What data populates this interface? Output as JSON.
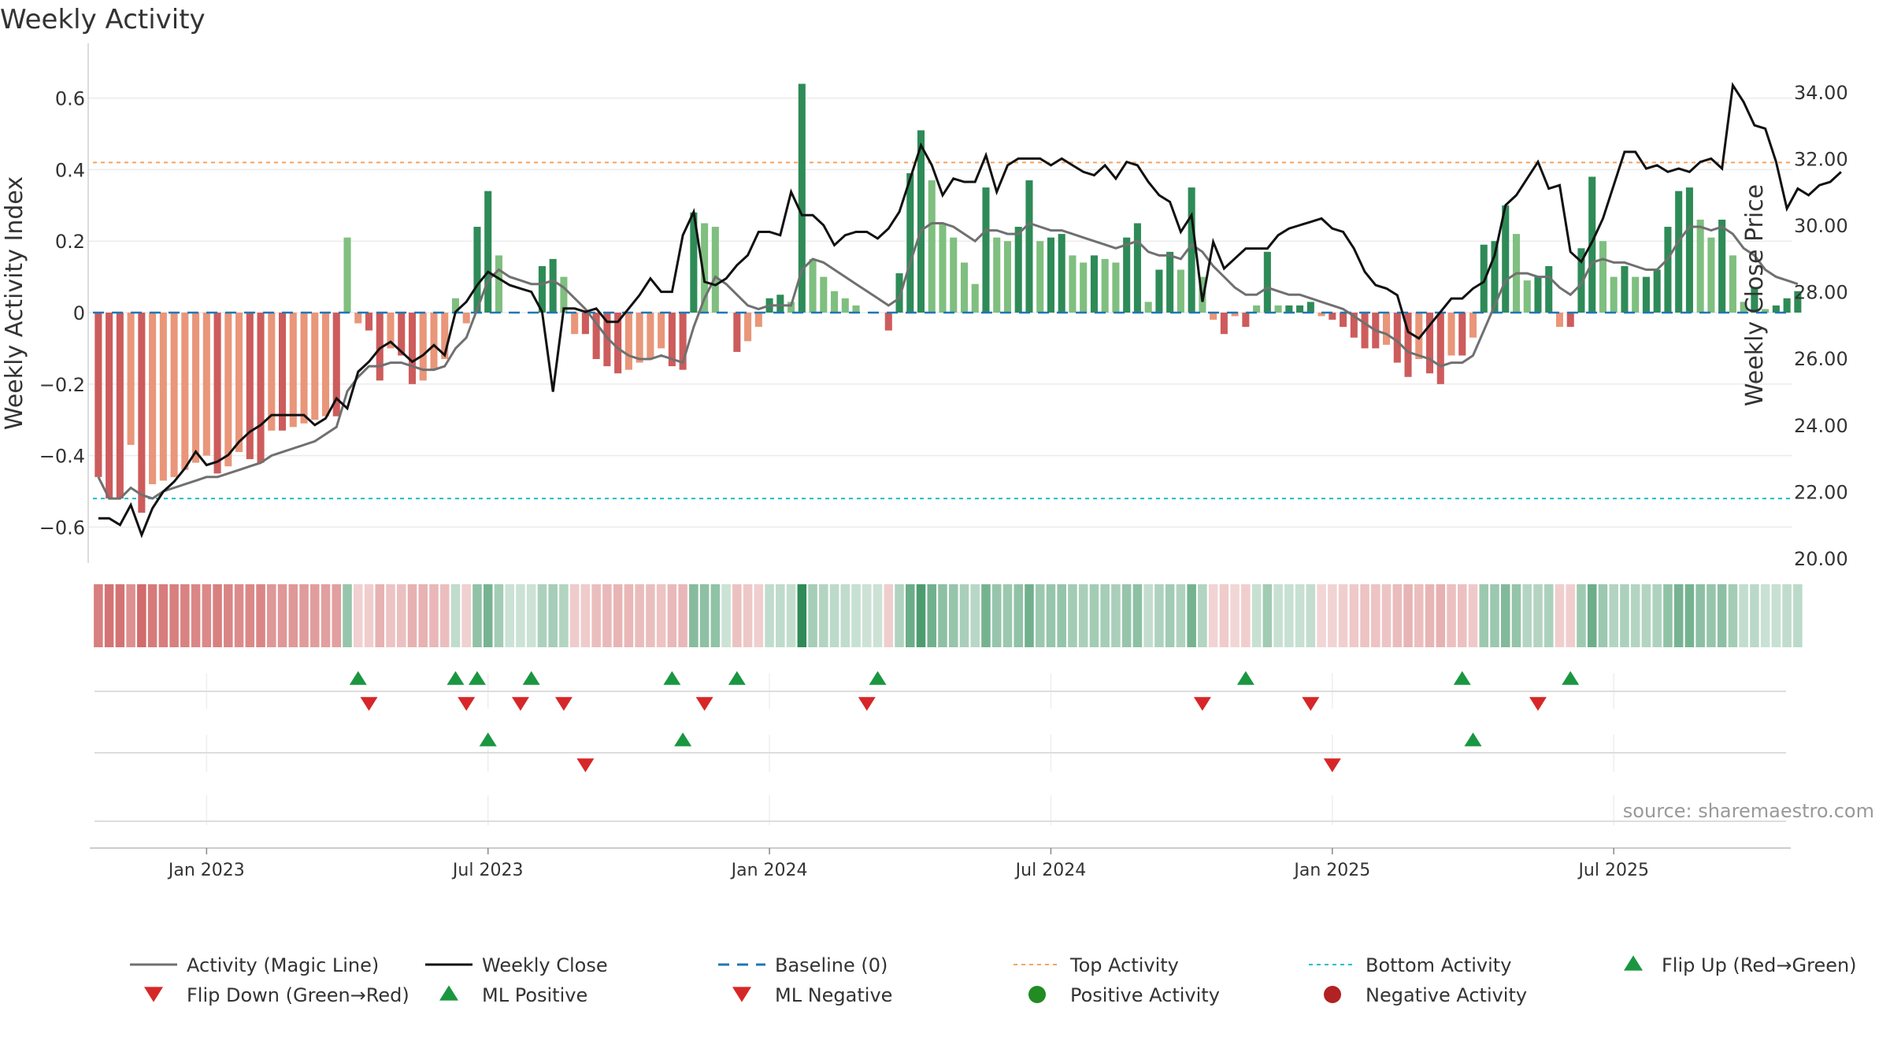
{
  "chart_data": {
    "type": "bar",
    "title": "Weekly Activity",
    "ylabel": "Weekly Activity Index",
    "y2label": "Weekly Close Price",
    "ylim": [
      -0.7,
      0.7
    ],
    "y2lim": [
      20,
      35
    ],
    "yticks": [
      "0.6",
      "0.4",
      "0.2",
      "0",
      "−0.2",
      "−0.4",
      "−0.6"
    ],
    "yticks_values": [
      0.6,
      0.4,
      0.2,
      0,
      -0.2,
      -0.4,
      -0.6
    ],
    "y2ticks": [
      "34.00",
      "32.00",
      "30.00",
      "28.00",
      "26.00",
      "24.00",
      "22.00",
      "20.00"
    ],
    "y2ticks_values": [
      34,
      32,
      30,
      28,
      26,
      24,
      22,
      20
    ],
    "xticks": [
      "Jan 2023",
      "Jul 2023",
      "Jan 2024",
      "Jul 2024",
      "Jan 2025",
      "Jul 2025"
    ],
    "xticks_week": [
      10,
      36,
      62,
      88,
      114,
      140
    ],
    "weeks_total": 157,
    "top_activity": 0.42,
    "bottom_activity": -0.52,
    "source": "source: sharemaestro.com",
    "activity": [
      -0.46,
      -0.52,
      -0.52,
      -0.37,
      -0.56,
      -0.48,
      -0.47,
      -0.46,
      -0.44,
      -0.42,
      -0.4,
      -0.45,
      -0.43,
      -0.39,
      -0.41,
      -0.42,
      -0.33,
      -0.33,
      -0.32,
      -0.31,
      -0.3,
      -0.29,
      -0.29,
      0.21,
      -0.03,
      -0.05,
      -0.19,
      -0.1,
      -0.12,
      -0.2,
      -0.19,
      -0.16,
      -0.13,
      0.04,
      -0.03,
      0.24,
      0.34,
      0.16,
      0,
      0,
      0,
      0.13,
      0.15,
      0.1,
      -0.06,
      -0.06,
      -0.13,
      -0.15,
      -0.17,
      -0.16,
      -0.14,
      -0.13,
      -0.1,
      -0.15,
      -0.16,
      0.28,
      0.25,
      0.24,
      0,
      -0.11,
      -0.08,
      -0.04,
      0.04,
      0.05,
      0.03,
      0.64,
      0.15,
      0.1,
      0.06,
      0.04,
      0.02,
      0,
      0,
      -0.05,
      0.11,
      0.39,
      0.51,
      0.37,
      0.25,
      0.21,
      0.14,
      0.08,
      0.35,
      0.21,
      0.2,
      0.24,
      0.37,
      0.2,
      0.21,
      0.22,
      0.16,
      0.14,
      0.16,
      0.15,
      0.14,
      0.21,
      0.25,
      0.03,
      0.12,
      0.17,
      0.12,
      0.35,
      0.1,
      -0.02,
      -0.06,
      -0.01,
      -0.04,
      0.02,
      0.17,
      0.02,
      0.02,
      0.02,
      0.03,
      -0.01,
      -0.02,
      -0.04,
      -0.07,
      -0.1,
      -0.1,
      -0.09,
      -0.14,
      -0.18,
      -0.13,
      -0.17,
      -0.2,
      -0.12,
      -0.12,
      -0.07,
      0.19,
      0.2,
      0.3,
      0.22,
      0.09,
      0.1,
      0.13,
      -0.04,
      -0.04,
      0.18,
      0.38,
      0.2,
      0.1,
      0.13,
      0.1,
      0.1,
      0.12,
      0.24,
      0.34,
      0.35,
      0.26,
      0.21,
      0.26,
      0.16,
      0.03,
      0.07,
      0.01,
      0.02,
      0.04,
      0.06
    ],
    "magic_line": [
      -0.46,
      -0.52,
      -0.52,
      -0.49,
      -0.51,
      -0.52,
      -0.5,
      -0.49,
      -0.48,
      -0.47,
      -0.46,
      -0.46,
      -0.45,
      -0.44,
      -0.43,
      -0.42,
      -0.4,
      -0.39,
      -0.38,
      -0.37,
      -0.36,
      -0.34,
      -0.32,
      -0.22,
      -0.18,
      -0.15,
      -0.15,
      -0.14,
      -0.14,
      -0.15,
      -0.16,
      -0.16,
      -0.15,
      -0.1,
      -0.07,
      0.01,
      0.09,
      0.12,
      0.1,
      0.09,
      0.08,
      0.08,
      0.09,
      0.07,
      0.04,
      0.01,
      -0.03,
      -0.07,
      -0.1,
      -0.12,
      -0.13,
      -0.13,
      -0.12,
      -0.13,
      -0.14,
      -0.04,
      0.04,
      0.1,
      0.08,
      0.05,
      0.02,
      0.01,
      0.02,
      0.02,
      0.02,
      0.12,
      0.15,
      0.14,
      0.12,
      0.1,
      0.08,
      0.06,
      0.04,
      0.02,
      0.04,
      0.14,
      0.23,
      0.25,
      0.25,
      0.24,
      0.22,
      0.2,
      0.23,
      0.23,
      0.22,
      0.22,
      0.25,
      0.24,
      0.23,
      0.23,
      0.22,
      0.21,
      0.2,
      0.19,
      0.18,
      0.19,
      0.2,
      0.17,
      0.16,
      0.16,
      0.15,
      0.19,
      0.17,
      0.13,
      0.1,
      0.07,
      0.05,
      0.05,
      0.07,
      0.06,
      0.05,
      0.05,
      0.04,
      0.03,
      0.02,
      0.01,
      -0.01,
      -0.03,
      -0.05,
      -0.06,
      -0.08,
      -0.11,
      -0.12,
      -0.13,
      -0.15,
      -0.14,
      -0.14,
      -0.12,
      -0.05,
      0.02,
      0.09,
      0.11,
      0.11,
      0.1,
      0.1,
      0.07,
      0.05,
      0.08,
      0.14,
      0.15,
      0.14,
      0.14,
      0.13,
      0.12,
      0.12,
      0.15,
      0.2,
      0.24,
      0.24,
      0.23,
      0.24,
      0.22,
      0.18,
      0.16,
      0.12,
      0.1,
      0.09,
      0.08
    ],
    "weekly_close": [
      21.2,
      21.2,
      21.0,
      21.6,
      20.7,
      21.5,
      22.0,
      22.3,
      22.7,
      23.2,
      22.8,
      22.9,
      23.1,
      23.5,
      23.8,
      24.0,
      24.3,
      24.3,
      24.3,
      24.3,
      24.0,
      24.2,
      24.8,
      24.5,
      25.6,
      25.9,
      26.3,
      26.5,
      26.2,
      25.9,
      26.1,
      26.4,
      26.1,
      27.4,
      27.7,
      28.2,
      28.6,
      28.4,
      28.2,
      28.1,
      28.0,
      27.4,
      25.0,
      27.5,
      27.5,
      27.4,
      27.5,
      27.1,
      27.1,
      27.5,
      27.9,
      28.4,
      28.0,
      28.0,
      29.7,
      30.4,
      28.3,
      28.2,
      28.4,
      28.8,
      29.1,
      29.8,
      29.8,
      29.7,
      31.0,
      30.3,
      30.3,
      30.0,
      29.4,
      29.7,
      29.8,
      29.8,
      29.6,
      29.9,
      30.4,
      31.4,
      32.4,
      31.8,
      30.9,
      31.4,
      31.3,
      31.3,
      32.1,
      31.0,
      31.8,
      32.0,
      32.0,
      32.0,
      31.8,
      32.0,
      31.8,
      31.6,
      31.5,
      31.8,
      31.4,
      31.9,
      31.8,
      31.3,
      30.9,
      30.7,
      29.8,
      30.3,
      27.7,
      29.5,
      28.7,
      29.0,
      29.3,
      29.3,
      29.3,
      29.7,
      29.9,
      30.0,
      30.1,
      30.2,
      29.9,
      29.8,
      29.3,
      28.6,
      28.2,
      28.1,
      27.9,
      26.8,
      26.6,
      27.0,
      27.4,
      27.8,
      27.8,
      28.1,
      28.3,
      29.1,
      30.6,
      30.9,
      31.4,
      31.9,
      31.1,
      31.2,
      29.2,
      28.9,
      29.5,
      30.2,
      31.2,
      32.2,
      32.2,
      31.7,
      31.8,
      31.6,
      31.7,
      31.6,
      31.9,
      32.0,
      31.7,
      34.2,
      33.7,
      33.0,
      32.9,
      31.9,
      30.5,
      31.1,
      30.9,
      31.2,
      31.3,
      31.6
    ],
    "flip_up_weeks": [
      24,
      33,
      35,
      40,
      53,
      59,
      72,
      106,
      126,
      136
    ],
    "flip_down_weeks": [
      25,
      34,
      39,
      43,
      56,
      71,
      102,
      112,
      133
    ],
    "ml_positive_weeks": [
      36,
      54,
      127
    ],
    "ml_negative_weeks": [
      45,
      114
    ],
    "legend": [
      "Activity (Magic Line)",
      "Weekly Close",
      "Baseline (0)",
      "Top Activity",
      "Bottom Activity",
      "Flip Up (Red→Green)",
      "Flip Down (Green→Red)",
      "ML Positive",
      "ML Negative",
      "Positive Activity",
      "Negative Activity"
    ],
    "colors": {
      "pos_strong": "#2e8b57",
      "pos_light": "#7fbf7f",
      "neg_strong": "#cd5c5c",
      "neg_light": "#e9967a",
      "magic_line": "#707070",
      "close": "#111111",
      "baseline": "#1f77b4",
      "top": "#f4a460",
      "bottom": "#17becf",
      "flip_up": "#1a9641",
      "flip_down": "#d62728",
      "pos_dot": "#228b22",
      "neg_dot": "#b22222"
    }
  }
}
